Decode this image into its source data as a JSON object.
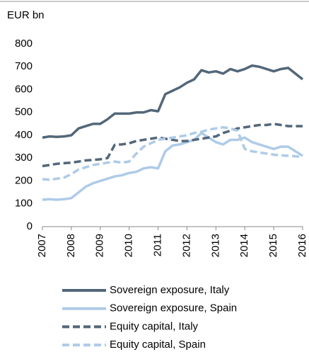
{
  "chart_data": {
    "type": "line",
    "y_label": "EUR bn",
    "x": [
      2007,
      2007.25,
      2007.5,
      2007.75,
      2008,
      2008.25,
      2008.5,
      2008.75,
      2009,
      2009.25,
      2009.5,
      2009.75,
      2010,
      2010.25,
      2010.5,
      2010.75,
      2011,
      2011.25,
      2011.5,
      2011.75,
      2012,
      2012.25,
      2012.5,
      2012.75,
      2013,
      2013.25,
      2013.5,
      2013.75,
      2014,
      2014.25,
      2014.5,
      2014.75,
      2015,
      2015.25,
      2015.5,
      2015.75,
      2016
    ],
    "series": [
      {
        "name": "Sovereign exposure, Italy",
        "color": "#536779",
        "dash": false,
        "values": [
          390,
          395,
          393,
          395,
          400,
          430,
          440,
          450,
          450,
          470,
          495,
          495,
          495,
          500,
          500,
          510,
          505,
          580,
          595,
          610,
          630,
          645,
          685,
          675,
          680,
          670,
          690,
          680,
          690,
          705,
          700,
          690,
          680,
          690,
          695,
          670,
          645
        ]
      },
      {
        "name": "Sovereign exposure, Spain",
        "color": "#aecbe8",
        "dash": false,
        "values": [
          118,
          120,
          118,
          120,
          125,
          150,
          175,
          190,
          200,
          210,
          220,
          225,
          235,
          240,
          255,
          260,
          255,
          330,
          355,
          360,
          370,
          380,
          410,
          390,
          370,
          360,
          380,
          380,
          390,
          370,
          360,
          350,
          340,
          350,
          350,
          330,
          310
        ]
      },
      {
        "name": "Equity capital, Italy",
        "color": "#536779",
        "dash": true,
        "values": [
          265,
          270,
          275,
          278,
          280,
          285,
          290,
          292,
          295,
          300,
          358,
          360,
          365,
          375,
          380,
          385,
          390,
          385,
          380,
          375,
          375,
          380,
          385,
          390,
          395,
          410,
          420,
          430,
          435,
          440,
          445,
          445,
          450,
          445,
          440,
          440,
          440
        ]
      },
      {
        "name": "Equity capital, Spain",
        "color": "#aecbe8",
        "dash": true,
        "values": [
          208,
          205,
          210,
          215,
          230,
          250,
          260,
          270,
          275,
          280,
          285,
          280,
          285,
          320,
          350,
          365,
          380,
          385,
          390,
          395,
          400,
          410,
          415,
          425,
          430,
          435,
          430,
          420,
          340,
          330,
          325,
          320,
          315,
          312,
          310,
          308,
          305
        ]
      }
    ],
    "xlim": [
      2007,
      2016
    ],
    "xticks": [
      2007,
      2008,
      2009,
      2010,
      2011,
      2012,
      2013,
      2014,
      2015,
      2016
    ],
    "ylim": [
      0,
      800
    ],
    "yticks": [
      0,
      100,
      200,
      300,
      400,
      500,
      600,
      700,
      800
    ]
  }
}
